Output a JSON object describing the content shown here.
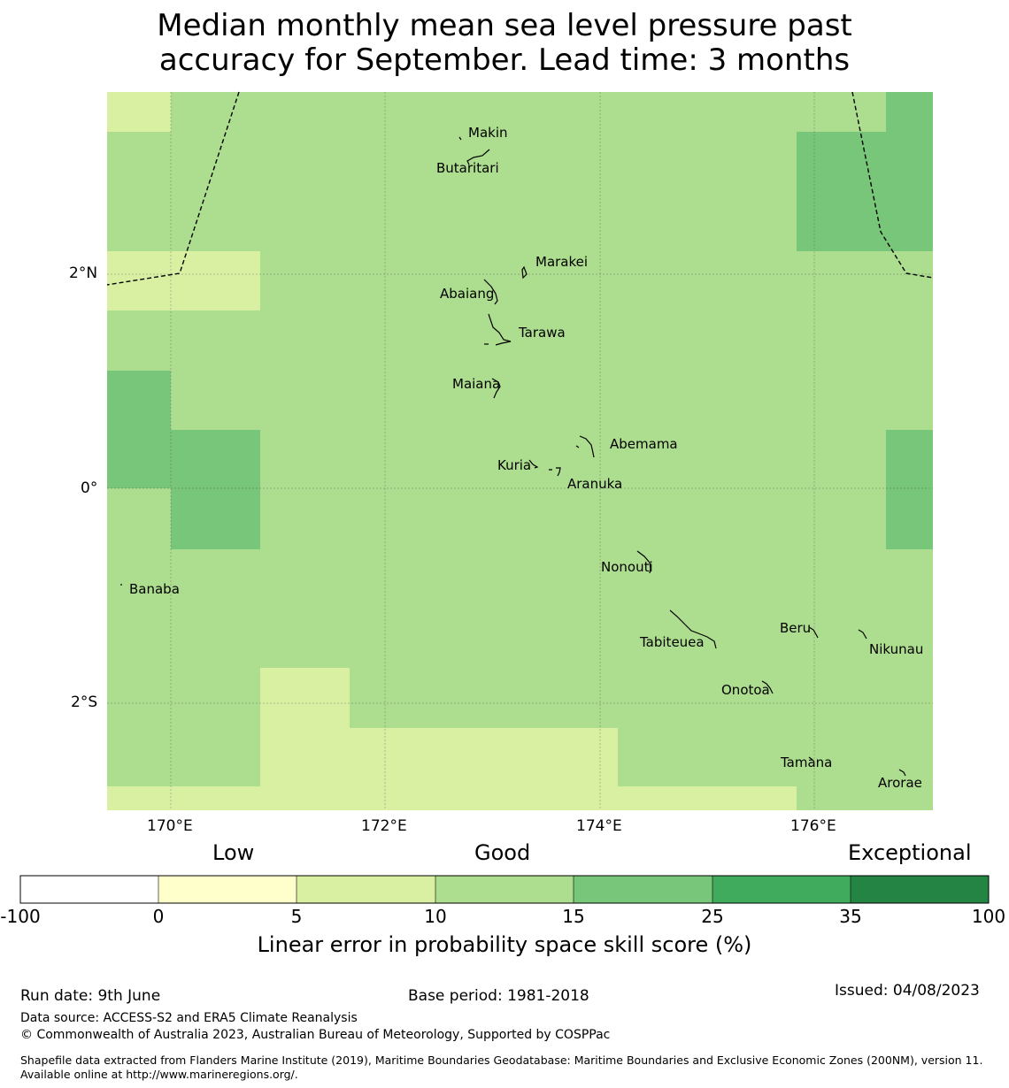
{
  "title": {
    "line1": "Median monthly mean sea level pressure past",
    "line2": "accuracy for September. Lead time: 3 months"
  },
  "map": {
    "lat_ticks": [
      "2°N",
      "0°",
      "2°S"
    ],
    "lon_ticks": [
      "170°E",
      "172°E",
      "174°E",
      "176°E"
    ],
    "islands": [
      {
        "name": "Makin"
      },
      {
        "name": "Butaritari"
      },
      {
        "name": "Marakei"
      },
      {
        "name": "Abaiang"
      },
      {
        "name": "Tarawa"
      },
      {
        "name": "Maiana"
      },
      {
        "name": "Abemama"
      },
      {
        "name": "Kuria"
      },
      {
        "name": "Aranuka"
      },
      {
        "name": "Nonouti"
      },
      {
        "name": "Banaba"
      },
      {
        "name": "Tabiteuea"
      },
      {
        "name": "Beru"
      },
      {
        "name": "Nikunau"
      },
      {
        "name": "Onotoa"
      },
      {
        "name": "Tamana"
      },
      {
        "name": "Arorae"
      }
    ]
  },
  "legend": {
    "categories": {
      "low": "Low",
      "good": "Good",
      "exceptional": "Exceptional"
    },
    "ticks": [
      "-100",
      "0",
      "5",
      "10",
      "15",
      "25",
      "35",
      "100"
    ],
    "colors": [
      "#ffffff",
      "#ffffcc",
      "#d9f0a3",
      "#addd8e",
      "#78c679",
      "#41ab5d",
      "#238443"
    ],
    "title": "Linear error in probability space skill score (%)"
  },
  "footer": {
    "run_date": "Run date: 9th June",
    "base_period": "Base period: 1981-2018",
    "issued": "Issued: 04/08/2023",
    "data_source": "Data source: ACCESS-S2 and ERA5 Climate Reanalysis",
    "copyright": "© Commonwealth of Australia 2023, Australian Bureau of Meteorology, Supported by COSPPac",
    "shapefile": "Shapefile data extracted from Flanders Marine Institute (2019), Maritime Boundaries Geodatabase: Maritime Boundaries and Exclusive Economic Zones (200NM), version 11. Available online at http://www.marineregions.org/."
  }
}
